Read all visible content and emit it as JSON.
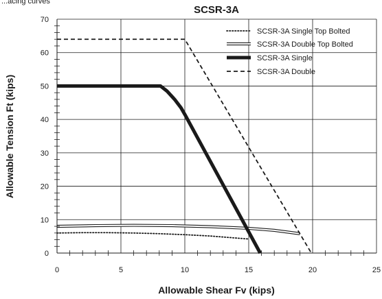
{
  "header_note": "...acing curves",
  "chart_data": {
    "type": "line",
    "title": "SCSR-3A",
    "xlabel": "Allowable Shear Fv (kips)",
    "ylabel": "Allowable Tension Ft (kips)",
    "xlim": [
      0,
      25
    ],
    "ylim": [
      0,
      70
    ],
    "x_ticks": [
      0,
      5,
      10,
      15,
      20,
      25
    ],
    "y_ticks": [
      0,
      10,
      20,
      30,
      40,
      50,
      60,
      70
    ],
    "x_minor_step": 1,
    "y_minor_step": 2,
    "grid": true,
    "legend_position": "top-right",
    "series": [
      {
        "name": "SCSR-3A Single Top Bolted",
        "style": "dotted",
        "color": "#1a1a1a",
        "points": [
          [
            0,
            6
          ],
          [
            2,
            6.1
          ],
          [
            4,
            6.1
          ],
          [
            6,
            6
          ],
          [
            8,
            5.8
          ],
          [
            10,
            5.5
          ],
          [
            12,
            5.1
          ],
          [
            14,
            4.5
          ],
          [
            15,
            4.2
          ]
        ]
      },
      {
        "name": "SCSR-3A Double Top Bolted",
        "style": "double",
        "color": "#1a1a1a",
        "points": [
          [
            0,
            8
          ],
          [
            3,
            8.2
          ],
          [
            6,
            8.3
          ],
          [
            9,
            8.2
          ],
          [
            12,
            7.9
          ],
          [
            15,
            7.4
          ],
          [
            17,
            6.8
          ],
          [
            19,
            5.8
          ]
        ]
      },
      {
        "name": "SCSR-3A Single",
        "style": "thick",
        "color": "#1a1a1a",
        "points": [
          [
            0,
            50
          ],
          [
            8.1,
            50
          ],
          [
            8.6,
            48.5
          ],
          [
            9.2,
            46
          ],
          [
            9.7,
            43.5
          ],
          [
            10,
            41.5
          ],
          [
            15.9,
            0
          ]
        ]
      },
      {
        "name": "SCSR-3A Double",
        "style": "dashed",
        "color": "#1a1a1a",
        "points": [
          [
            0,
            64
          ],
          [
            10,
            64
          ],
          [
            19.9,
            0
          ]
        ]
      }
    ]
  }
}
